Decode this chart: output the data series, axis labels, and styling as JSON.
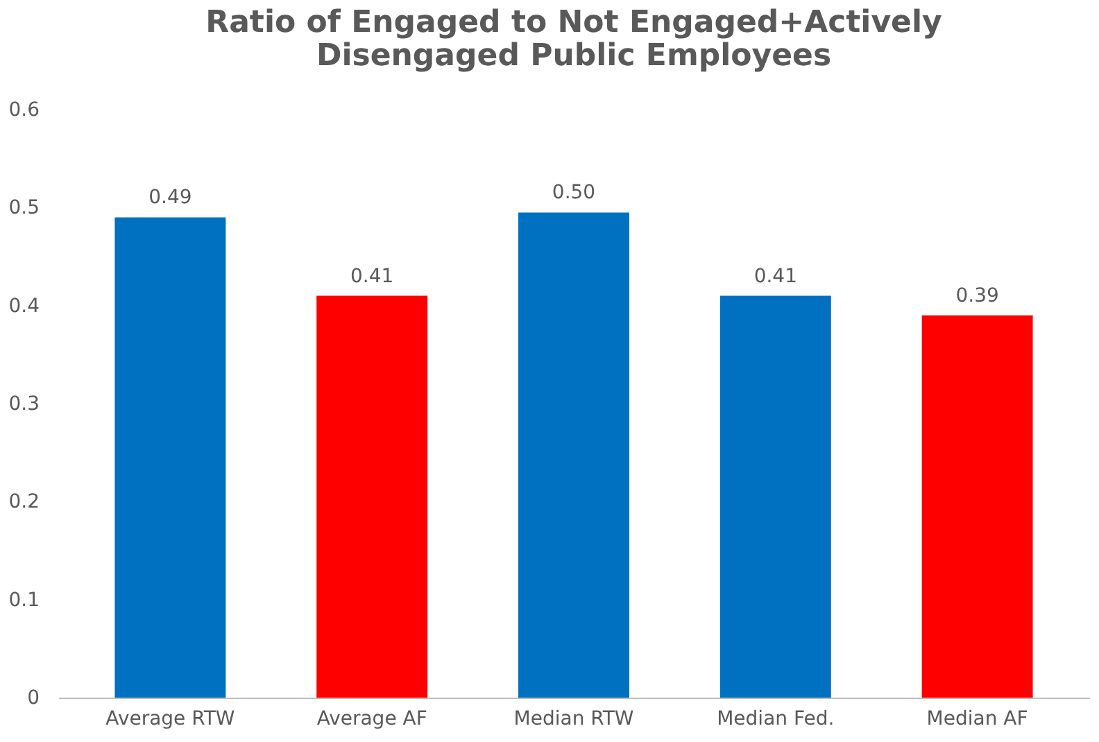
{
  "chart_data": {
    "type": "bar",
    "title": "Ratio of Engaged to Not Engaged+Actively Disengaged Public Employees",
    "categories": [
      "Average RTW",
      "Average AF",
      "Median RTW",
      "Median Fed.",
      "Median AF"
    ],
    "values": [
      0.49,
      0.41,
      0.495,
      0.41,
      0.39
    ],
    "value_labels": [
      "0.49",
      "0.41",
      "0.50",
      "0.41",
      "0.39"
    ],
    "colors": [
      "#0070c0",
      "#ff0000",
      "#0070c0",
      "#0070c0",
      "#ff0000"
    ],
    "ylim": [
      0,
      0.6
    ],
    "yticks": [
      0,
      0.1,
      0.2,
      0.3,
      0.4,
      0.5,
      0.6
    ],
    "grid": false
  }
}
